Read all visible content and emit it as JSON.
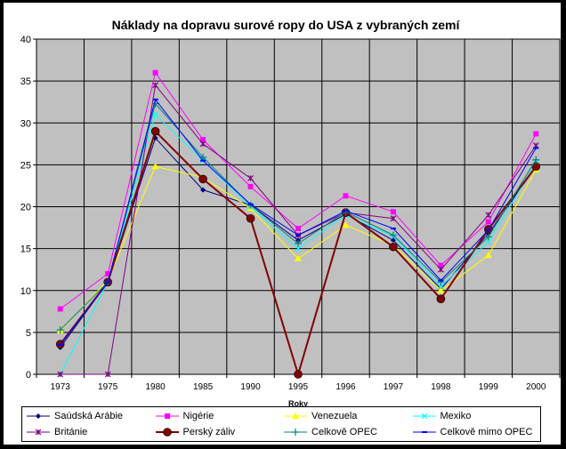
{
  "chart_data": {
    "type": "line",
    "title": "Náklady na dopravu surové ropy do USA z vybraných zemí",
    "xlabel": "Roky",
    "ylabel": "",
    "ylim": [
      0,
      40
    ],
    "yticks": [
      0,
      5,
      10,
      15,
      20,
      25,
      30,
      35,
      40
    ],
    "categories": [
      "1973",
      "1975",
      "1980",
      "1985",
      "1990",
      "1995",
      "1996",
      "1997",
      "1998",
      "1999",
      "2000"
    ],
    "grid": true,
    "plot_background": "#c0c0c0",
    "legend_position": "bottom",
    "series": [
      {
        "name": "Saúdská Arábie",
        "color": "#000080",
        "marker": "diamond",
        "width": 1,
        "values": [
          3.2,
          11.0,
          28.2,
          22.0,
          20.2,
          16.0,
          19.1,
          16.0,
          10.2,
          16.8,
          24.8
        ]
      },
      {
        "name": "Nigérie",
        "color": "#ff00ff",
        "marker": "square",
        "width": 1,
        "values": [
          7.8,
          12.0,
          36.0,
          28.0,
          22.4,
          17.4,
          21.3,
          19.4,
          13.0,
          18.2,
          28.7
        ]
      },
      {
        "name": "Venezuela",
        "color": "#ffff00",
        "marker": "triangle",
        "width": 1,
        "values": [
          5.2,
          11.2,
          24.8,
          23.5,
          19.8,
          13.8,
          17.8,
          15.4,
          10.0,
          14.2,
          24.4
        ]
      },
      {
        "name": "Mexiko",
        "color": "#00ffff",
        "marker": "x",
        "width": 1,
        "values": [
          0,
          11.0,
          31.0,
          25.5,
          20.0,
          15.0,
          19.0,
          16.5,
          10.5,
          15.8,
          25.2
        ]
      },
      {
        "name": "Británie",
        "color": "#800080",
        "marker": "asterisk",
        "width": 1,
        "values": [
          0,
          0,
          34.5,
          27.5,
          23.4,
          16.6,
          19.3,
          18.6,
          12.5,
          19.0,
          27.3
        ]
      },
      {
        "name": "Perský záliv",
        "color": "#800000",
        "marker": "circle",
        "width": 2,
        "values": [
          3.6,
          11.0,
          29.0,
          23.3,
          18.6,
          0,
          19.3,
          15.2,
          9.0,
          17.3,
          24.8
        ]
      },
      {
        "name": "Celkově OPEC",
        "color": "#008080",
        "marker": "plus",
        "width": 1,
        "values": [
          5.3,
          11.0,
          32.3,
          25.9,
          20.2,
          15.6,
          19.4,
          16.6,
          11.0,
          16.4,
          25.6
        ]
      },
      {
        "name": "Celkově mimo OPEC",
        "color": "#0000ff",
        "marker": "dash",
        "width": 1,
        "values": [
          3.5,
          11.0,
          32.8,
          25.5,
          20.3,
          16.6,
          19.5,
          17.4,
          11.2,
          17.2,
          27.0
        ]
      }
    ]
  }
}
